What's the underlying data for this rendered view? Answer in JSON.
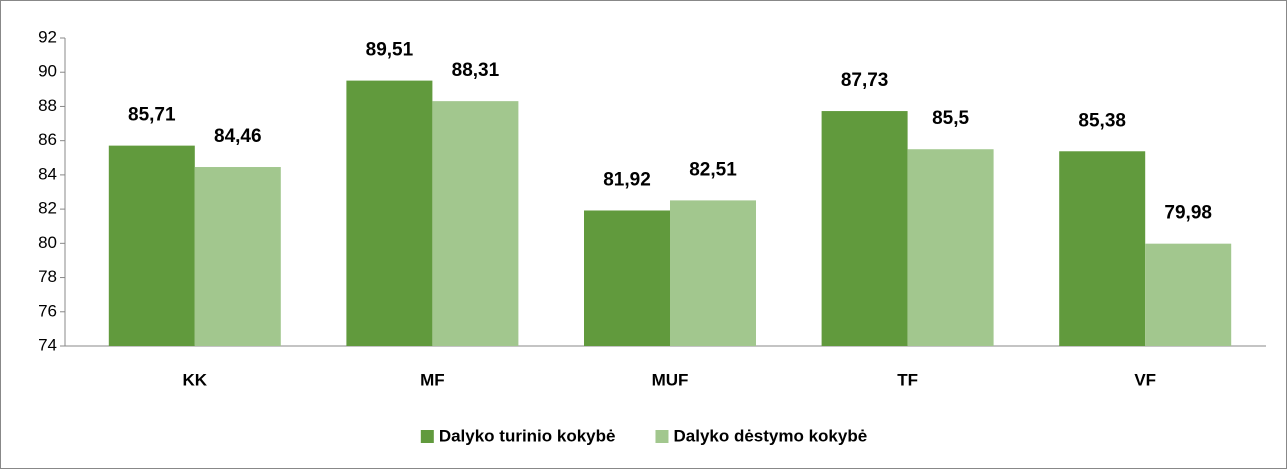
{
  "chart_data": {
    "type": "bar",
    "categories": [
      "KK",
      "MF",
      "MUF",
      "TF",
      "VF"
    ],
    "series": [
      {
        "name": "Dalyko turinio kokybė",
        "color": "#619a3d",
        "values": [
          85.71,
          89.51,
          81.92,
          87.73,
          85.38
        ],
        "value_labels": [
          "85,71",
          "89,51",
          "81,92",
          "87,73",
          "85,38"
        ]
      },
      {
        "name": "Dalyko dėstymo kokybė",
        "color": "#a2c78e",
        "values": [
          84.46,
          88.31,
          82.51,
          85.5,
          79.98
        ],
        "value_labels": [
          "84,46",
          "88,31",
          "82,51",
          "85,5",
          "79,98"
        ]
      }
    ],
    "ylim": [
      74,
      92
    ],
    "yticks": [
      74,
      76,
      78,
      80,
      82,
      84,
      86,
      88,
      90,
      92
    ],
    "legend": "bottom"
  }
}
